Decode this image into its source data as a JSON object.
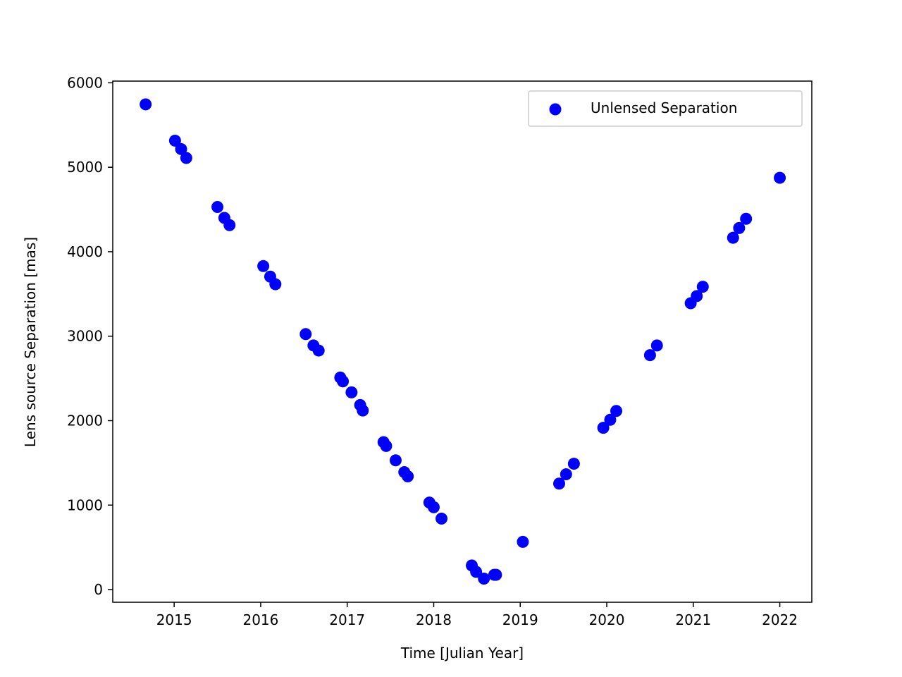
{
  "chart_data": {
    "type": "scatter",
    "title": "",
    "xlabel": "Time [Julian Year]",
    "ylabel": "Lens source Separation [mas]",
    "xlim": [
      2014.29,
      2022.37
    ],
    "ylim": [
      -150,
      6020
    ],
    "xticks": [
      2015,
      2016,
      2017,
      2018,
      2019,
      2020,
      2021,
      2022
    ],
    "yticks": [
      0,
      1000,
      2000,
      3000,
      4000,
      5000,
      6000
    ],
    "grid": false,
    "legend": {
      "position": "top-right",
      "entries": [
        "Unlensed Separation"
      ]
    },
    "series": [
      {
        "name": "Unlensed Separation",
        "color": "#0000ff",
        "marker": "circle",
        "points": [
          [
            2014.67,
            5745
          ],
          [
            2015.01,
            5315
          ],
          [
            2015.08,
            5215
          ],
          [
            2015.14,
            5110
          ],
          [
            2015.5,
            4530
          ],
          [
            2015.58,
            4400
          ],
          [
            2015.64,
            4315
          ],
          [
            2016.03,
            3830
          ],
          [
            2016.11,
            3705
          ],
          [
            2016.17,
            3615
          ],
          [
            2016.52,
            3025
          ],
          [
            2016.61,
            2890
          ],
          [
            2016.67,
            2830
          ],
          [
            2016.92,
            2510
          ],
          [
            2016.95,
            2465
          ],
          [
            2017.05,
            2335
          ],
          [
            2017.15,
            2185
          ],
          [
            2017.18,
            2120
          ],
          [
            2017.42,
            1745
          ],
          [
            2017.45,
            1700
          ],
          [
            2017.56,
            1530
          ],
          [
            2017.66,
            1390
          ],
          [
            2017.7,
            1340
          ],
          [
            2017.95,
            1030
          ],
          [
            2018.0,
            975
          ],
          [
            2018.09,
            840
          ],
          [
            2018.44,
            285
          ],
          [
            2018.49,
            210
          ],
          [
            2018.58,
            130
          ],
          [
            2018.7,
            175
          ],
          [
            2018.72,
            175
          ],
          [
            2019.03,
            565
          ],
          [
            2019.45,
            1255
          ],
          [
            2019.53,
            1365
          ],
          [
            2019.62,
            1490
          ],
          [
            2019.96,
            1915
          ],
          [
            2020.04,
            2010
          ],
          [
            2020.11,
            2115
          ],
          [
            2020.5,
            2775
          ],
          [
            2020.58,
            2890
          ],
          [
            2020.97,
            3390
          ],
          [
            2021.04,
            3475
          ],
          [
            2021.11,
            3585
          ],
          [
            2021.46,
            4165
          ],
          [
            2021.53,
            4280
          ],
          [
            2021.61,
            4390
          ],
          [
            2022.0,
            4875
          ]
        ]
      }
    ]
  }
}
